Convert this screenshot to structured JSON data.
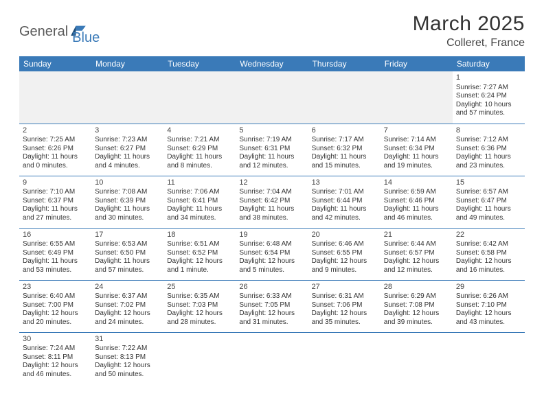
{
  "brand": {
    "part1": "General",
    "part2": "Blue"
  },
  "title": {
    "month": "March 2025",
    "location": "Colleret, France"
  },
  "colors": {
    "header_bg": "#3a7ab8",
    "header_fg": "#ffffff",
    "border": "#3a7ab8",
    "text": "#333333",
    "logo_gray": "#5a5a5a",
    "logo_blue": "#3a7ab8",
    "empty_bg": "#f1f1f1"
  },
  "day_headers": [
    "Sunday",
    "Monday",
    "Tuesday",
    "Wednesday",
    "Thursday",
    "Friday",
    "Saturday"
  ],
  "weeks": [
    [
      null,
      null,
      null,
      null,
      null,
      null,
      {
        "d": "1",
        "sr": "7:27 AM",
        "ss": "6:24 PM",
        "dl": "10 hours and 57 minutes."
      }
    ],
    [
      {
        "d": "2",
        "sr": "7:25 AM",
        "ss": "6:26 PM",
        "dl": "11 hours and 0 minutes."
      },
      {
        "d": "3",
        "sr": "7:23 AM",
        "ss": "6:27 PM",
        "dl": "11 hours and 4 minutes."
      },
      {
        "d": "4",
        "sr": "7:21 AM",
        "ss": "6:29 PM",
        "dl": "11 hours and 8 minutes."
      },
      {
        "d": "5",
        "sr": "7:19 AM",
        "ss": "6:31 PM",
        "dl": "11 hours and 12 minutes."
      },
      {
        "d": "6",
        "sr": "7:17 AM",
        "ss": "6:32 PM",
        "dl": "11 hours and 15 minutes."
      },
      {
        "d": "7",
        "sr": "7:14 AM",
        "ss": "6:34 PM",
        "dl": "11 hours and 19 minutes."
      },
      {
        "d": "8",
        "sr": "7:12 AM",
        "ss": "6:36 PM",
        "dl": "11 hours and 23 minutes."
      }
    ],
    [
      {
        "d": "9",
        "sr": "7:10 AM",
        "ss": "6:37 PM",
        "dl": "11 hours and 27 minutes."
      },
      {
        "d": "10",
        "sr": "7:08 AM",
        "ss": "6:39 PM",
        "dl": "11 hours and 30 minutes."
      },
      {
        "d": "11",
        "sr": "7:06 AM",
        "ss": "6:41 PM",
        "dl": "11 hours and 34 minutes."
      },
      {
        "d": "12",
        "sr": "7:04 AM",
        "ss": "6:42 PM",
        "dl": "11 hours and 38 minutes."
      },
      {
        "d": "13",
        "sr": "7:01 AM",
        "ss": "6:44 PM",
        "dl": "11 hours and 42 minutes."
      },
      {
        "d": "14",
        "sr": "6:59 AM",
        "ss": "6:46 PM",
        "dl": "11 hours and 46 minutes."
      },
      {
        "d": "15",
        "sr": "6:57 AM",
        "ss": "6:47 PM",
        "dl": "11 hours and 49 minutes."
      }
    ],
    [
      {
        "d": "16",
        "sr": "6:55 AM",
        "ss": "6:49 PM",
        "dl": "11 hours and 53 minutes."
      },
      {
        "d": "17",
        "sr": "6:53 AM",
        "ss": "6:50 PM",
        "dl": "11 hours and 57 minutes."
      },
      {
        "d": "18",
        "sr": "6:51 AM",
        "ss": "6:52 PM",
        "dl": "12 hours and 1 minute."
      },
      {
        "d": "19",
        "sr": "6:48 AM",
        "ss": "6:54 PM",
        "dl": "12 hours and 5 minutes."
      },
      {
        "d": "20",
        "sr": "6:46 AM",
        "ss": "6:55 PM",
        "dl": "12 hours and 9 minutes."
      },
      {
        "d": "21",
        "sr": "6:44 AM",
        "ss": "6:57 PM",
        "dl": "12 hours and 12 minutes."
      },
      {
        "d": "22",
        "sr": "6:42 AM",
        "ss": "6:58 PM",
        "dl": "12 hours and 16 minutes."
      }
    ],
    [
      {
        "d": "23",
        "sr": "6:40 AM",
        "ss": "7:00 PM",
        "dl": "12 hours and 20 minutes."
      },
      {
        "d": "24",
        "sr": "6:37 AM",
        "ss": "7:02 PM",
        "dl": "12 hours and 24 minutes."
      },
      {
        "d": "25",
        "sr": "6:35 AM",
        "ss": "7:03 PM",
        "dl": "12 hours and 28 minutes."
      },
      {
        "d": "26",
        "sr": "6:33 AM",
        "ss": "7:05 PM",
        "dl": "12 hours and 31 minutes."
      },
      {
        "d": "27",
        "sr": "6:31 AM",
        "ss": "7:06 PM",
        "dl": "12 hours and 35 minutes."
      },
      {
        "d": "28",
        "sr": "6:29 AM",
        "ss": "7:08 PM",
        "dl": "12 hours and 39 minutes."
      },
      {
        "d": "29",
        "sr": "6:26 AM",
        "ss": "7:10 PM",
        "dl": "12 hours and 43 minutes."
      }
    ],
    [
      {
        "d": "30",
        "sr": "7:24 AM",
        "ss": "8:11 PM",
        "dl": "12 hours and 46 minutes."
      },
      {
        "d": "31",
        "sr": "7:22 AM",
        "ss": "8:13 PM",
        "dl": "12 hours and 50 minutes."
      },
      null,
      null,
      null,
      null,
      null
    ]
  ],
  "labels": {
    "sunrise": "Sunrise:",
    "sunset": "Sunset:",
    "daylight": "Daylight:"
  }
}
